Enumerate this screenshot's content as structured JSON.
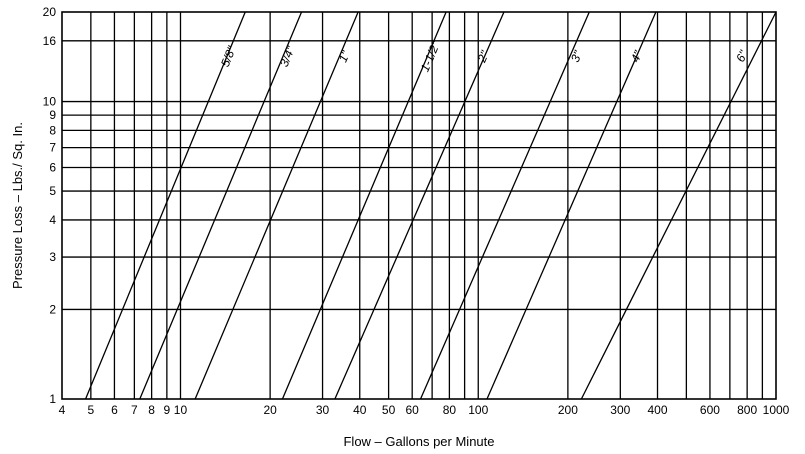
{
  "chart_data": {
    "type": "line",
    "title": "",
    "xlabel": "Flow – Gallons per Minute",
    "ylabel": "Pressure Loss – Lbs./ Sq. In.",
    "x_scale": "log",
    "y_scale": "log",
    "xlim": [
      4,
      1000
    ],
    "ylim": [
      1,
      20
    ],
    "grid": true,
    "x_ticks": [
      {
        "value": 4,
        "label": "4"
      },
      {
        "value": 5,
        "label": "5"
      },
      {
        "value": 6,
        "label": "6"
      },
      {
        "value": 7,
        "label": "7"
      },
      {
        "value": 8,
        "label": "8"
      },
      {
        "value": 9,
        "label": "9"
      },
      {
        "value": 10,
        "label": "10"
      },
      {
        "value": 20,
        "label": "20"
      },
      {
        "value": 30,
        "label": "30"
      },
      {
        "value": 40,
        "label": "40"
      },
      {
        "value": 50,
        "label": "50"
      },
      {
        "value": 60,
        "label": "60"
      },
      {
        "value": 80,
        "label": "80"
      },
      {
        "value": 100,
        "label": "100"
      },
      {
        "value": 200,
        "label": "200"
      },
      {
        "value": 300,
        "label": "300"
      },
      {
        "value": 400,
        "label": "400"
      },
      {
        "value": 600,
        "label": "600"
      },
      {
        "value": 800,
        "label": "800"
      },
      {
        "value": 1000,
        "label": "1000"
      }
    ],
    "x_grid": [
      5,
      6,
      7,
      8,
      9,
      10,
      20,
      30,
      40,
      50,
      60,
      70,
      80,
      90,
      100,
      200,
      300,
      400,
      500,
      600,
      700,
      800,
      900
    ],
    "y_ticks": [
      {
        "value": 1,
        "label": "1"
      },
      {
        "value": 2,
        "label": "2"
      },
      {
        "value": 3,
        "label": "3"
      },
      {
        "value": 4,
        "label": "4"
      },
      {
        "value": 5,
        "label": "5"
      },
      {
        "value": 6,
        "label": "6"
      },
      {
        "value": 7,
        "label": "7"
      },
      {
        "value": 8,
        "label": "8"
      },
      {
        "value": 9,
        "label": "9"
      },
      {
        "value": 10,
        "label": "10"
      },
      {
        "value": 16,
        "label": "16"
      },
      {
        "value": 20,
        "label": "20"
      }
    ],
    "y_grid": [
      2,
      3,
      4,
      5,
      6,
      7,
      8,
      9,
      10,
      16
    ],
    "series": [
      {
        "name": "5/8\"",
        "points": [
          [
            4.8,
            1
          ],
          [
            16.5,
            20
          ]
        ],
        "label_at": [
          14.9,
          14.0
        ]
      },
      {
        "name": "3/4\"",
        "points": [
          [
            7.3,
            1
          ],
          [
            25.5,
            20
          ]
        ],
        "label_at": [
          23.5,
          14.0
        ]
      },
      {
        "name": "1\"",
        "points": [
          [
            11.2,
            1
          ],
          [
            39.5,
            20
          ]
        ],
        "label_at": [
          36.5,
          14.0
        ]
      },
      {
        "name": "1-1/2\"",
        "points": [
          [
            22,
            1
          ],
          [
            78,
            20
          ]
        ],
        "label_at": [
          71,
          14.0
        ]
      },
      {
        "name": "2\"",
        "points": [
          [
            33,
            1
          ],
          [
            122,
            20
          ]
        ],
        "label_at": [
          107,
          14.0
        ]
      },
      {
        "name": "3\"",
        "points": [
          [
            64,
            1
          ],
          [
            236,
            20
          ]
        ],
        "label_at": [
          220,
          14.0
        ]
      },
      {
        "name": "4\"",
        "points": [
          [
            107,
            1
          ],
          [
            395,
            20
          ]
        ],
        "label_at": [
          350,
          14.0
        ]
      },
      {
        "name": "6\"",
        "points": [
          [
            222,
            1
          ],
          [
            1000,
            20
          ]
        ],
        "label_at": [
          790,
          14.0
        ]
      }
    ]
  }
}
